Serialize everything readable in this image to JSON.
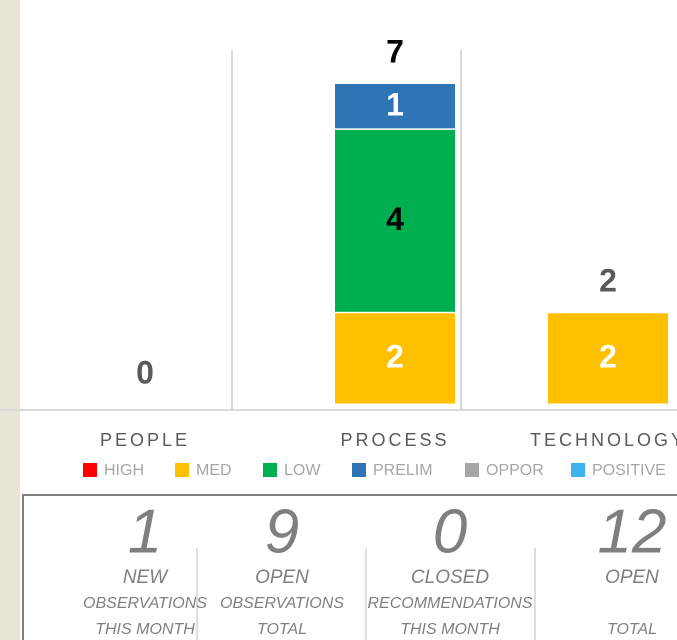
{
  "chart_data": {
    "type": "bar",
    "stacked": true,
    "categories": [
      "PEOPLE",
      "PROCESS",
      "TECHNOLOGY"
    ],
    "series": [
      {
        "name": "HIGH",
        "color": "#ff0000",
        "values": [
          0,
          0,
          0
        ]
      },
      {
        "name": "MED",
        "color": "#ffc000",
        "values": [
          0,
          2,
          2
        ]
      },
      {
        "name": "LOW",
        "color": "#00b050",
        "values": [
          0,
          4,
          0
        ]
      },
      {
        "name": "PRELIM",
        "color": "#2e75b6",
        "values": [
          0,
          1,
          0
        ]
      },
      {
        "name": "OPPOR",
        "color": "#a6a6a6",
        "values": [
          0,
          0,
          0
        ]
      },
      {
        "name": "POSITIVE",
        "color": "#3fb2f0",
        "values": [
          0,
          0,
          0
        ]
      }
    ],
    "totals": [
      0,
      7,
      2
    ],
    "ylim": [
      0,
      7
    ]
  },
  "stats": [
    {
      "value": 1,
      "label": "NEW",
      "detail": [
        "OBSERVATIONS",
        "THIS MONTH"
      ]
    },
    {
      "value": 9,
      "label": "OPEN",
      "detail": [
        "OBSERVATIONS",
        "TOTAL"
      ]
    },
    {
      "value": 0,
      "label": "CLOSED",
      "detail": [
        "RECOMMENDATIONS",
        "THIS MONTH"
      ]
    },
    {
      "value": 12,
      "label": "OPEN",
      "detail": [
        "TOTAL"
      ]
    }
  ]
}
